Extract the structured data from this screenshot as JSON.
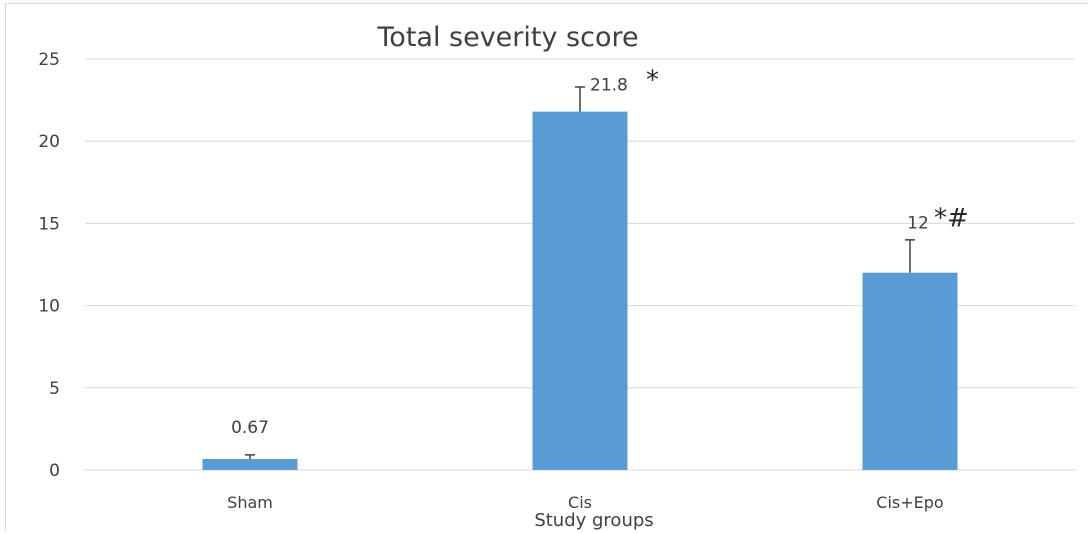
{
  "chart_data": {
    "type": "bar",
    "title": "Total severity score",
    "xlabel": "Study groups",
    "ylabel": "",
    "ylim": [
      0,
      25
    ],
    "yticks": [
      0,
      5,
      10,
      15,
      20,
      25
    ],
    "grid": true,
    "categories": [
      "Sham",
      "Cis",
      "Cis+Epo"
    ],
    "values": [
      0.67,
      21.8,
      12
    ],
    "error_upper": [
      0.25,
      1.5,
      2.0
    ],
    "data_labels": [
      "0.67",
      "21.8",
      "12"
    ],
    "annotations": [
      "",
      "*",
      "*#"
    ],
    "bar_color": "#5B9BD5",
    "grid_color": "#d9d9d9",
    "error_color": "#404040"
  }
}
